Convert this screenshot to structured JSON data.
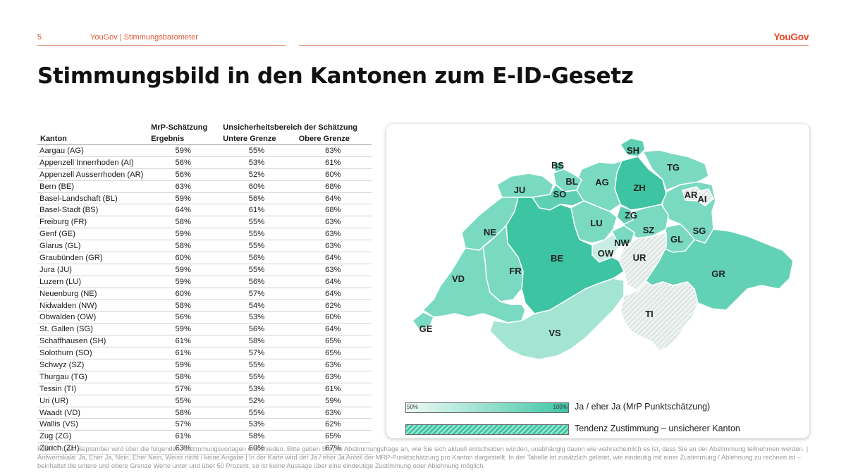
{
  "header": {
    "page_number": "5",
    "section": "YouGov | Stimmungsbarometer",
    "logo": "YouGov"
  },
  "title": "Stimmungsbild in den Kantonen zum E-ID-Gesetz",
  "table": {
    "group_header_estimate": "MrP-Schätzung",
    "group_header_range": "Unsicherheitsbereich der Schätzung",
    "col_canton": "Kanton",
    "col_result": "Ergebnis",
    "col_lower": "Untere Grenze",
    "col_upper": "Obere Grenze",
    "rows": [
      {
        "canton": "Aargau (AG)",
        "result": "59%",
        "lower": "55%",
        "upper": "63%"
      },
      {
        "canton": "Appenzell Innerrhoden (AI)",
        "result": "56%",
        "lower": "53%",
        "upper": "61%"
      },
      {
        "canton": "Appenzell Ausserrhoden (AR)",
        "result": "56%",
        "lower": "52%",
        "upper": "60%"
      },
      {
        "canton": "Bern (BE)",
        "result": "63%",
        "lower": "60%",
        "upper": "68%"
      },
      {
        "canton": "Basel-Landschaft (BL)",
        "result": "59%",
        "lower": "56%",
        "upper": "64%"
      },
      {
        "canton": "Basel-Stadt (BS)",
        "result": "64%",
        "lower": "61%",
        "upper": "68%"
      },
      {
        "canton": "Freiburg (FR)",
        "result": "58%",
        "lower": "55%",
        "upper": "63%"
      },
      {
        "canton": "Genf (GE)",
        "result": "59%",
        "lower": "55%",
        "upper": "63%"
      },
      {
        "canton": "Glarus (GL)",
        "result": "58%",
        "lower": "55%",
        "upper": "63%"
      },
      {
        "canton": "Graubünden (GR)",
        "result": "60%",
        "lower": "56%",
        "upper": "64%"
      },
      {
        "canton": "Jura (JU)",
        "result": "59%",
        "lower": "55%",
        "upper": "63%"
      },
      {
        "canton": "Luzern (LU)",
        "result": "59%",
        "lower": "56%",
        "upper": "64%"
      },
      {
        "canton": "Neuenburg (NE)",
        "result": "60%",
        "lower": "57%",
        "upper": "64%"
      },
      {
        "canton": "Nidwalden (NW)",
        "result": "58%",
        "lower": "54%",
        "upper": "62%"
      },
      {
        "canton": "Obwalden (OW)",
        "result": "56%",
        "lower": "53%",
        "upper": "60%"
      },
      {
        "canton": "St. Gallen (SG)",
        "result": "59%",
        "lower": "56%",
        "upper": "64%"
      },
      {
        "canton": "Schaffhausen (SH)",
        "result": "61%",
        "lower": "58%",
        "upper": "65%"
      },
      {
        "canton": "Solothurn (SO)",
        "result": "61%",
        "lower": "57%",
        "upper": "65%"
      },
      {
        "canton": "Schwyz (SZ)",
        "result": "59%",
        "lower": "55%",
        "upper": "63%"
      },
      {
        "canton": "Thurgau (TG)",
        "result": "58%",
        "lower": "55%",
        "upper": "63%"
      },
      {
        "canton": "Tessin (TI)",
        "result": "57%",
        "lower": "53%",
        "upper": "61%"
      },
      {
        "canton": "Uri (UR)",
        "result": "55%",
        "lower": "52%",
        "upper": "59%"
      },
      {
        "canton": "Waadt (VD)",
        "result": "58%",
        "lower": "55%",
        "upper": "63%"
      },
      {
        "canton": "Wallis (VS)",
        "result": "57%",
        "lower": "53%",
        "upper": "62%"
      },
      {
        "canton": "Zug (ZG)",
        "result": "61%",
        "lower": "58%",
        "upper": "65%"
      },
      {
        "canton": "Zürich (ZH)",
        "result": "63%",
        "lower": "60%",
        "upper": "67%"
      }
    ]
  },
  "map": {
    "scale_min_value": 50,
    "scale_max_value": 100,
    "color_low": "#f0faf7",
    "color_high": "#3fc6a5",
    "uncertain_fill": "#dde8e5",
    "labels": {
      "SH": "SH",
      "BS": "BS",
      "TG": "TG",
      "BL": "BL",
      "AG": "AG",
      "ZH": "ZH",
      "JU": "JU",
      "SO": "SO",
      "AR": "AR",
      "AI": "AI",
      "ZG": "ZG",
      "LU": "LU",
      "SZ": "SZ",
      "SG": "SG",
      "NE": "NE",
      "GL": "GL",
      "NW": "NW",
      "OW": "OW",
      "UR": "UR",
      "BE": "BE",
      "FR": "FR",
      "GR": "GR",
      "VD": "VD",
      "TI": "TI",
      "GE": "GE",
      "VS": "VS"
    },
    "uncertain_cantons": [
      "UR",
      "TI",
      "AI",
      "AR",
      "OW"
    ]
  },
  "legend": {
    "gradient_min": "50%",
    "gradient_max": "100%",
    "gradient_label": "Ja / eher Ja (MrP Punktschätzung)",
    "hatch_label": "Tendenz Zustimmung – unsicherer Kanton"
  },
  "footnote": "F110: Am 28. September wird über die folgenden Abstimmungsvorlagen entschieden. Bitte geben Sie pro Abstimmungsfrage an, wie Sie sich aktuell entscheiden würden, unabhängig davon wie wahrscheinlich es ist, dass Sie an der Abstimmung teilnehmen werden. | Antwortskala: Ja, Eher Ja, Nein, Eher Nein, Weiss nicht / keine Angabe | In der Karte wird der Ja / eher Ja Anteil der MRP-Punktschätzung pro Kanton dargestellt. In der Tabelle ist zusätzlich gelistet, wie eindeutig mit einer Zustimmung / Ablehnung zu rechnen ist – beinhaltet die untere und obere Grenze Werte unter und über 50 Prozent, so ist keine Aussage über eine eindeutige Zustimmung oder Ablehnung möglich."
}
